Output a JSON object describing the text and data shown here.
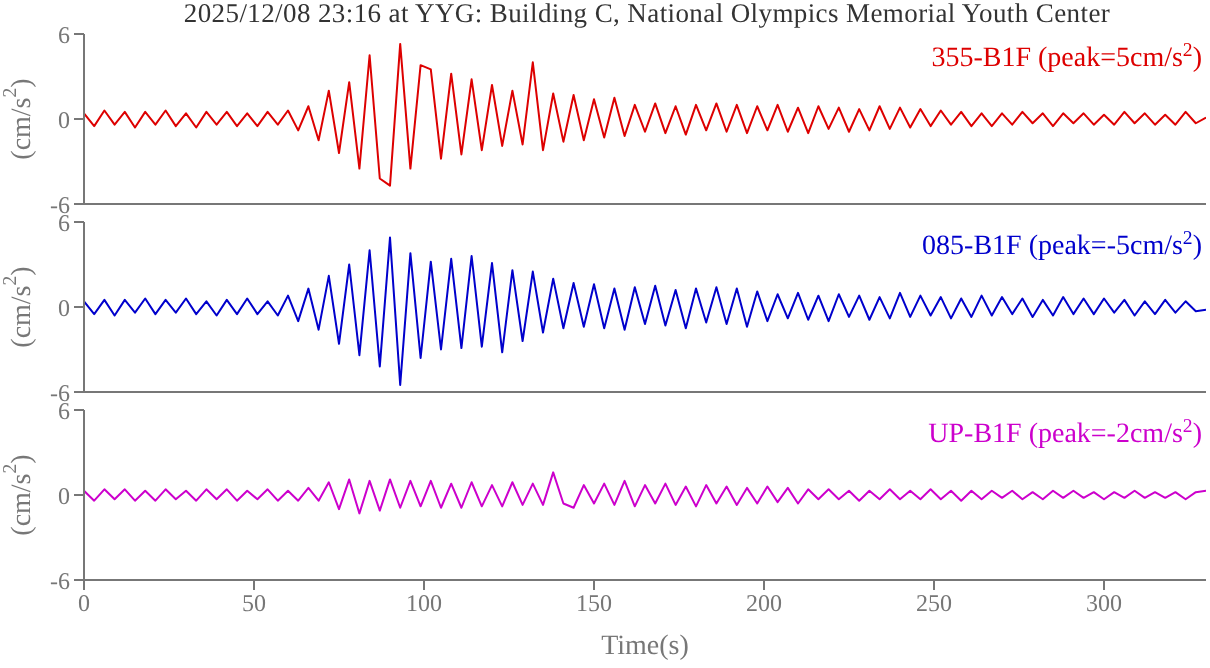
{
  "chart_data": [
    {
      "type": "line",
      "title": "2025/12/08 23:16 at YYG: Building C, National Olympics Memorial Youth Center",
      "ylabel": "(cm/s$^{2}$)",
      "xlim": [
        0,
        330
      ],
      "ylim": [
        -6,
        6
      ],
      "xticks": [
        0,
        50,
        100,
        150,
        200,
        250,
        300
      ],
      "yticks": [
        -6,
        0,
        6
      ],
      "tick_labels": "y",
      "x": [
        0,
        3,
        6,
        9,
        12,
        15,
        18,
        21,
        24,
        27,
        30,
        33,
        36,
        39,
        42,
        45,
        48,
        51,
        54,
        57,
        60,
        63,
        66,
        69,
        72,
        75,
        78,
        81,
        84,
        87,
        90,
        93,
        96,
        99,
        102,
        105,
        108,
        111,
        114,
        117,
        120,
        123,
        126,
        129,
        132,
        135,
        138,
        141,
        144,
        147,
        150,
        153,
        156,
        159,
        162,
        165,
        168,
        171,
        174,
        177,
        180,
        183,
        186,
        189,
        192,
        195,
        198,
        201,
        204,
        207,
        210,
        213,
        216,
        219,
        222,
        225,
        228,
        231,
        234,
        237,
        240,
        243,
        246,
        249,
        252,
        255,
        258,
        261,
        264,
        267,
        270,
        273,
        276,
        279,
        282,
        285,
        288,
        291,
        294,
        297,
        300,
        303,
        306,
        309,
        312,
        315,
        318,
        321,
        324,
        327,
        330
      ],
      "series": [
        {
          "name": "355-B1F (peak=5cm/s$^{2}$)",
          "color": "#dd0000",
          "values": [
            0.4,
            -0.5,
            0.6,
            -0.4,
            0.5,
            -0.6,
            0.5,
            -0.4,
            0.6,
            -0.5,
            0.4,
            -0.6,
            0.5,
            -0.4,
            0.5,
            -0.5,
            0.4,
            -0.5,
            0.5,
            -0.4,
            0.6,
            -0.8,
            0.9,
            -1.5,
            2.0,
            -2.4,
            2.6,
            -3.5,
            4.5,
            -4.2,
            -4.7,
            5.3,
            -3.5,
            3.8,
            3.5,
            -2.8,
            3.2,
            -2.5,
            2.8,
            -2.2,
            2.4,
            -1.9,
            2.0,
            -1.8,
            4.0,
            -2.2,
            1.8,
            -1.6,
            1.7,
            -1.5,
            1.4,
            -1.3,
            1.5,
            -1.2,
            1.0,
            -0.9,
            1.1,
            -1.0,
            0.9,
            -1.1,
            1.0,
            -0.8,
            1.1,
            -0.9,
            1.0,
            -1.0,
            0.9,
            -0.8,
            1.0,
            -0.9,
            0.8,
            -1.0,
            0.9,
            -0.7,
            0.8,
            -0.9,
            0.7,
            -0.8,
            0.9,
            -0.7,
            0.8,
            -0.6,
            0.7,
            -0.5,
            0.6,
            -0.4,
            0.5,
            -0.5,
            0.4,
            -0.5,
            0.4,
            -0.4,
            0.5,
            -0.3,
            0.4,
            -0.5,
            0.4,
            -0.3,
            0.4,
            -0.4,
            0.3,
            -0.4,
            0.5,
            -0.3,
            0.4,
            -0.4,
            0.3,
            -0.4,
            0.5,
            -0.3,
            0.1
          ]
        }
      ]
    },
    {
      "type": "line",
      "ylabel": "(cm/s$^{2}$)",
      "xlim": [
        0,
        330
      ],
      "ylim": [
        -6,
        6
      ],
      "xticks": [
        0,
        50,
        100,
        150,
        200,
        250,
        300
      ],
      "yticks": [
        -6,
        0,
        6
      ],
      "tick_labels": "y",
      "x": [
        0,
        3,
        6,
        9,
        12,
        15,
        18,
        21,
        24,
        27,
        30,
        33,
        36,
        39,
        42,
        45,
        48,
        51,
        54,
        57,
        60,
        63,
        66,
        69,
        72,
        75,
        78,
        81,
        84,
        87,
        90,
        93,
        96,
        99,
        102,
        105,
        108,
        111,
        114,
        117,
        120,
        123,
        126,
        129,
        132,
        135,
        138,
        141,
        144,
        147,
        150,
        153,
        156,
        159,
        162,
        165,
        168,
        171,
        174,
        177,
        180,
        183,
        186,
        189,
        192,
        195,
        198,
        201,
        204,
        207,
        210,
        213,
        216,
        219,
        222,
        225,
        228,
        231,
        234,
        237,
        240,
        243,
        246,
        249,
        252,
        255,
        258,
        261,
        264,
        267,
        270,
        273,
        276,
        279,
        282,
        285,
        288,
        291,
        294,
        297,
        300,
        303,
        306,
        309,
        312,
        315,
        318,
        321,
        324,
        327,
        330
      ],
      "series": [
        {
          "name": "085-B1F (peak=-5cm/s$^{2}$)",
          "color": "#0000cc",
          "values": [
            0.4,
            -0.5,
            0.5,
            -0.6,
            0.5,
            -0.4,
            0.6,
            -0.5,
            0.5,
            -0.4,
            0.6,
            -0.5,
            0.4,
            -0.6,
            0.5,
            -0.5,
            0.6,
            -0.5,
            0.4,
            -0.6,
            0.8,
            -1.0,
            1.3,
            -1.6,
            2.2,
            -2.6,
            3.0,
            -3.4,
            4.0,
            -4.2,
            4.9,
            -5.5,
            3.8,
            -3.6,
            3.2,
            -3.0,
            3.4,
            -2.9,
            3.6,
            -2.8,
            3.1,
            -3.2,
            2.6,
            -2.4,
            2.5,
            -1.8,
            2.0,
            -1.5,
            1.7,
            -1.4,
            1.6,
            -1.5,
            1.3,
            -1.6,
            1.4,
            -1.2,
            1.5,
            -1.3,
            1.2,
            -1.5,
            1.3,
            -1.1,
            1.4,
            -1.2,
            1.3,
            -1.4,
            1.1,
            -1.0,
            0.9,
            -0.8,
            1.0,
            -0.9,
            0.8,
            -1.0,
            0.9,
            -0.7,
            0.8,
            -0.9,
            0.7,
            -0.8,
            1.0,
            -0.7,
            0.8,
            -0.6,
            0.7,
            -0.8,
            0.6,
            -0.7,
            0.8,
            -0.6,
            0.7,
            -0.5,
            0.6,
            -0.7,
            0.5,
            -0.6,
            0.7,
            -0.5,
            0.6,
            -0.5,
            0.6,
            -0.4,
            0.5,
            -0.6,
            0.4,
            -0.5,
            0.5,
            -0.4,
            0.4,
            -0.3,
            -0.2
          ]
        }
      ]
    },
    {
      "type": "line",
      "xlabel": "Time(s)",
      "ylabel": "(cm/s$^{2}$)",
      "xlim": [
        0,
        330
      ],
      "ylim": [
        -6,
        6
      ],
      "xticks": [
        0,
        50,
        100,
        150,
        200,
        250,
        300
      ],
      "yticks": [
        -6,
        0,
        6
      ],
      "x": [
        0,
        3,
        6,
        9,
        12,
        15,
        18,
        21,
        24,
        27,
        30,
        33,
        36,
        39,
        42,
        45,
        48,
        51,
        54,
        57,
        60,
        63,
        66,
        69,
        72,
        75,
        78,
        81,
        84,
        87,
        90,
        93,
        96,
        99,
        102,
        105,
        108,
        111,
        114,
        117,
        120,
        123,
        126,
        129,
        132,
        135,
        138,
        141,
        144,
        147,
        150,
        153,
        156,
        159,
        162,
        165,
        168,
        171,
        174,
        177,
        180,
        183,
        186,
        189,
        192,
        195,
        198,
        201,
        204,
        207,
        210,
        213,
        216,
        219,
        222,
        225,
        228,
        231,
        234,
        237,
        240,
        243,
        246,
        249,
        252,
        255,
        258,
        261,
        264,
        267,
        270,
        273,
        276,
        279,
        282,
        285,
        288,
        291,
        294,
        297,
        300,
        303,
        306,
        309,
        312,
        315,
        318,
        321,
        324,
        327,
        330
      ],
      "series": [
        {
          "name": "UP-B1F (peak=-2cm/s$^{2}$)",
          "color": "#cc00cc",
          "values": [
            0.3,
            -0.4,
            0.4,
            -0.3,
            0.4,
            -0.4,
            0.3,
            -0.4,
            0.4,
            -0.3,
            0.3,
            -0.4,
            0.4,
            -0.3,
            0.4,
            -0.4,
            0.3,
            -0.3,
            0.4,
            -0.4,
            0.3,
            -0.4,
            0.5,
            -0.4,
            0.9,
            -1.0,
            1.1,
            -1.3,
            1.0,
            -1.1,
            1.1,
            -0.9,
            1.0,
            -0.8,
            1.0,
            -0.9,
            0.8,
            -0.9,
            0.9,
            -0.8,
            0.7,
            -0.8,
            0.9,
            -0.7,
            0.8,
            -0.7,
            1.6,
            -0.6,
            -0.9,
            0.7,
            -0.6,
            0.8,
            -0.7,
            1.0,
            -0.8,
            0.7,
            -0.6,
            0.8,
            -0.7,
            0.6,
            -0.8,
            0.7,
            -0.6,
            0.6,
            -0.7,
            0.5,
            -0.6,
            0.6,
            -0.5,
            0.5,
            -0.6,
            0.4,
            -0.3,
            0.4,
            -0.3,
            0.3,
            -0.4,
            0.3,
            -0.3,
            0.4,
            -0.3,
            0.3,
            -0.3,
            0.4,
            -0.3,
            0.3,
            -0.4,
            0.3,
            -0.3,
            0.3,
            -0.2,
            0.3,
            -0.3,
            0.2,
            -0.3,
            0.3,
            -0.2,
            0.3,
            -0.2,
            0.2,
            -0.3,
            0.2,
            -0.2,
            0.3,
            -0.2,
            0.2,
            -0.2,
            0.2,
            -0.3,
            0.2,
            0.3
          ]
        }
      ]
    }
  ]
}
